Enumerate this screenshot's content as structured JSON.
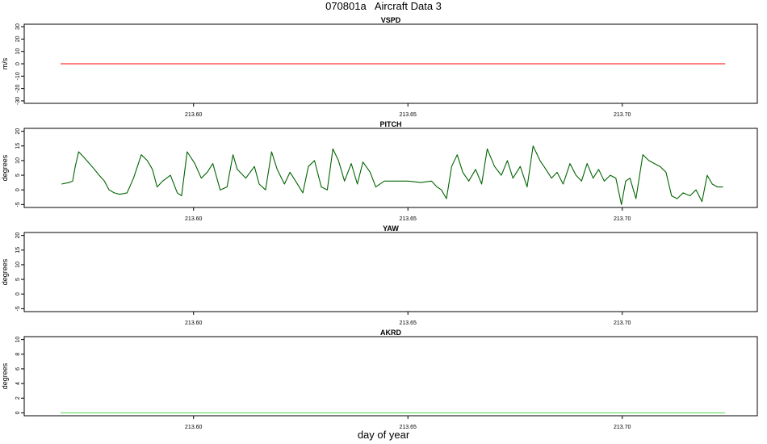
{
  "figure": {
    "title": "070801a   Aircraft Data 3",
    "xlabel": "day of year"
  },
  "chart_data": [
    {
      "type": "line",
      "title": "VSPD",
      "ylabel": "m/s",
      "xlim": [
        213.5605,
        213.7315
      ],
      "ylim": [
        -32,
        32
      ],
      "yticks": [
        -30,
        -20,
        -10,
        0,
        10,
        20,
        30
      ],
      "xticks": [
        213.6,
        213.65,
        213.7
      ],
      "xtick_labels": [
        "213.60",
        "213.65",
        "213.70"
      ],
      "series": [
        {
          "color": "#ff0000",
          "x": [
            213.569,
            213.724
          ],
          "y": [
            0,
            0
          ]
        }
      ]
    },
    {
      "type": "line",
      "title": "PITCH",
      "ylabel": "degrees",
      "xlim": [
        213.5605,
        213.7315
      ],
      "ylim": [
        -6,
        21
      ],
      "yticks": [
        -5,
        0,
        5,
        10,
        15,
        20
      ],
      "xticks": [
        213.6,
        213.65,
        213.7
      ],
      "xtick_labels": [
        "213.60",
        "213.65",
        "213.70"
      ],
      "series": [
        {
          "color": "#006400",
          "x": [
            213.5692,
            213.571,
            213.5718,
            213.5724,
            213.5732,
            213.5745,
            213.5763,
            213.578,
            213.5792,
            213.5803,
            213.5815,
            213.5828,
            213.5845,
            213.586,
            213.5878,
            213.5892,
            213.5904,
            213.5915,
            213.5928,
            213.5946,
            213.5962,
            213.5972,
            213.5985,
            213.6003,
            213.6018,
            213.6032,
            213.6045,
            213.6062,
            213.6078,
            213.6092,
            213.6102,
            213.6122,
            213.6142,
            213.6153,
            213.6168,
            213.6182,
            213.6195,
            213.6212,
            213.6225,
            213.6238,
            213.6255,
            213.6268,
            213.6282,
            213.6298,
            213.6312,
            213.6325,
            213.6338,
            213.6352,
            213.6368,
            213.6382,
            213.6395,
            213.6412,
            213.6425,
            213.6445,
            213.647,
            213.65,
            213.653,
            213.6555,
            213.6568,
            213.6578,
            213.659,
            213.6602,
            213.6615,
            213.6628,
            213.6642,
            213.6658,
            213.6672,
            213.6685,
            213.6702,
            213.6718,
            213.6732,
            213.6745,
            213.6762,
            213.6778,
            213.6792,
            213.6808,
            213.6822,
            213.6835,
            213.6848,
            213.6862,
            213.6878,
            213.6892,
            213.6905,
            213.6918,
            213.6932,
            213.6945,
            213.6958,
            213.6972,
            213.6985,
            213.6998,
            213.7008,
            213.7018,
            213.7032,
            213.7048,
            213.7062,
            213.7075,
            213.7088,
            213.7102,
            213.7115,
            213.7128,
            213.7142,
            213.7158,
            213.7172,
            213.7186,
            213.7198,
            213.721,
            213.7222,
            213.7235
          ],
          "y": [
            2,
            2.5,
            3,
            8,
            13,
            11,
            8,
            5,
            3,
            0,
            -1,
            -1.5,
            -1,
            4,
            12,
            10,
            7,
            1,
            3,
            5,
            -1,
            -2,
            13,
            9,
            4,
            6,
            9,
            0,
            1,
            12,
            7,
            4,
            8,
            2,
            0,
            13,
            7,
            2,
            6,
            3,
            -1,
            8,
            10,
            1,
            0,
            14,
            10,
            3,
            9,
            2,
            9.5,
            6,
            1,
            3,
            3,
            3,
            2.5,
            3,
            1,
            0,
            -3,
            8,
            12,
            6,
            3,
            7,
            2,
            14,
            8,
            5,
            10,
            4,
            8,
            1,
            15,
            10,
            7,
            4,
            6,
            2,
            9,
            5,
            3,
            9,
            4,
            7,
            3,
            5,
            4,
            -5,
            3,
            4,
            -3,
            12,
            10,
            9,
            8,
            6,
            -2,
            -3,
            -1,
            -2,
            0,
            -4,
            5,
            2,
            1,
            1
          ]
        }
      ]
    },
    {
      "type": "line",
      "title": "YAW",
      "ylabel": "degrees",
      "xlim": [
        213.5605,
        213.7315
      ],
      "ylim": [
        -6,
        21
      ],
      "yticks": [
        -5,
        0,
        5,
        10,
        15,
        20
      ],
      "xticks": [
        213.6,
        213.65,
        213.7
      ],
      "xtick_labels": [
        "213.60",
        "213.65",
        "213.70"
      ],
      "series": []
    },
    {
      "type": "line",
      "title": "AKRD",
      "ylabel": "degrees",
      "xlim": [
        213.5605,
        213.7315
      ],
      "ylim": [
        -0.4,
        10.4
      ],
      "yticks": [
        0,
        2,
        4,
        6,
        8,
        10
      ],
      "xticks": [
        213.6,
        213.65,
        213.7
      ],
      "xtick_labels": [
        "213.60",
        "213.65",
        "213.70"
      ],
      "series": [
        {
          "color": "#66dd66",
          "x": [
            213.569,
            213.724
          ],
          "y": [
            0,
            0
          ]
        }
      ]
    }
  ]
}
